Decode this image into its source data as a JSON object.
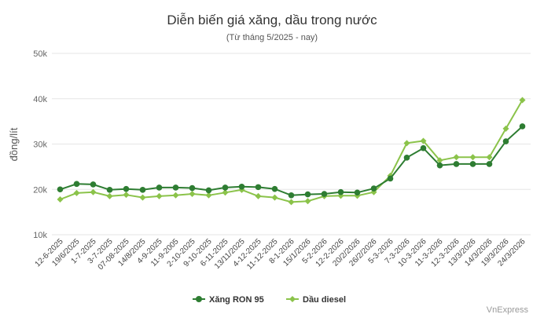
{
  "chart_data": {
    "type": "line",
    "title": "Diễn biến giá xăng, dầu trong nước",
    "subtitle": "(Từ tháng 5/2025 - nay)",
    "ylabel": "đồng/lít",
    "xlabel": "",
    "ylim": [
      10000,
      50000
    ],
    "yticks": [
      {
        "value": 10000,
        "label": "10k"
      },
      {
        "value": 20000,
        "label": "20k"
      },
      {
        "value": 30000,
        "label": "30k"
      },
      {
        "value": 40000,
        "label": "40k"
      },
      {
        "value": 50000,
        "label": "50k"
      }
    ],
    "grid": true,
    "legend_position": "bottom",
    "categories": [
      "12-6-2025",
      "19/6/2025",
      "1-7-2025",
      "3-7-2025",
      "07-08-2025",
      "14/8/2025",
      "4-9-2025",
      "11-9-2005",
      "2-10-2025",
      "9-10-2025",
      "6-11-2025",
      "13/11/2025",
      "4-12-2025",
      "11-12-2025",
      "8-1-2026",
      "15/1/2026",
      "5-2-2026",
      "12-2-2026",
      "20/2/2026",
      "26/2/2026",
      "5-3-2026",
      "7-3-2026",
      "10-3-2026",
      "11-3-2026",
      "12-3-2026",
      "13/3/2026",
      "14/3/2026",
      "19/3/2026",
      "24/3/2026"
    ],
    "series": [
      {
        "name": "Xăng RON 95",
        "color": "#2e7d32",
        "marker": "circle",
        "values": [
          20000,
          21200,
          21100,
          19900,
          20100,
          19900,
          20400,
          20400,
          20300,
          19800,
          20400,
          20600,
          20500,
          20100,
          18700,
          18900,
          19000,
          19400,
          19300,
          20200,
          22400,
          27000,
          29100,
          25300,
          25600,
          25600,
          25600,
          30600,
          33900
        ]
      },
      {
        "name": "Dầu diesel",
        "color": "#8bc34a",
        "marker": "diamond",
        "values": [
          17800,
          19200,
          19400,
          18500,
          18800,
          18200,
          18500,
          18700,
          19000,
          18700,
          19300,
          19900,
          18500,
          18200,
          17200,
          17400,
          18500,
          18600,
          18600,
          19400,
          23000,
          30200,
          30700,
          26400,
          27100,
          27100,
          27100,
          33400,
          39700
        ]
      }
    ]
  },
  "credit": "VnExpress"
}
